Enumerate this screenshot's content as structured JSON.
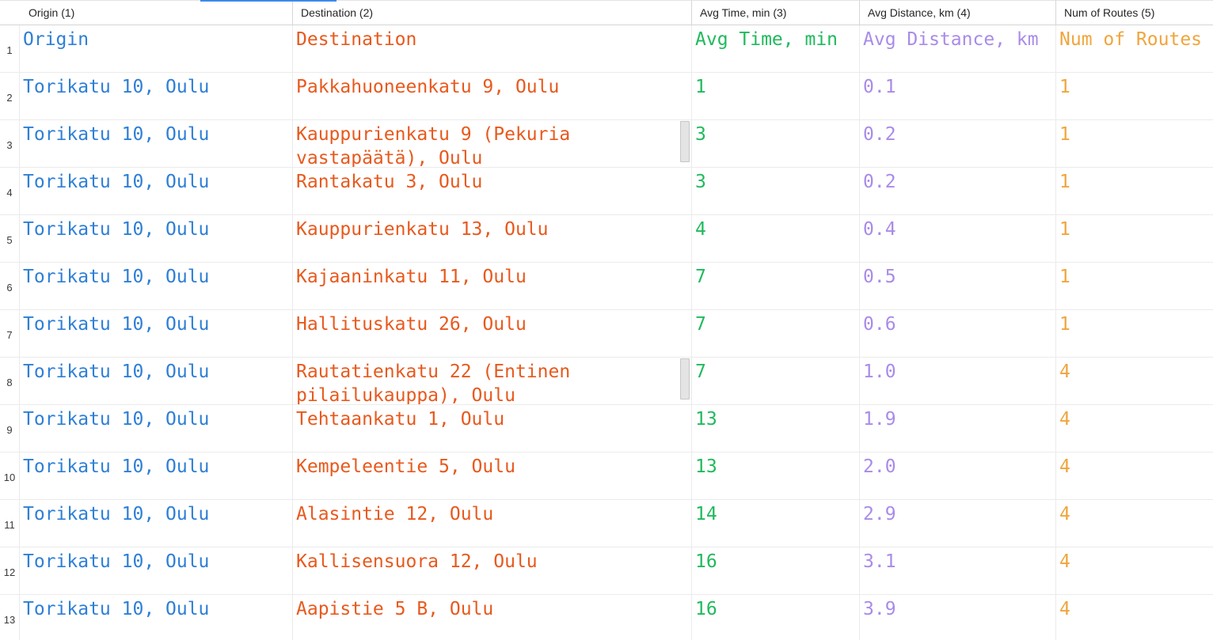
{
  "colors": {
    "origin": "#2e7fd6",
    "destination": "#e8591d",
    "avg_time": "#1fba5c",
    "avg_distance": "#a98be8",
    "num_routes": "#f0a53c"
  },
  "header": {
    "origin": "Origin (1)",
    "destination": "Destination (2)",
    "avg_time": "Avg Time, min (3)",
    "avg_distance": "Avg Distance, km (4)",
    "num_routes": "Num of Routes (5)"
  },
  "rows": [
    {
      "num": "1",
      "origin": "Origin",
      "destination": "Destination",
      "avg_time": "Avg Time, min",
      "avg_distance": "Avg Distance, km",
      "num_routes": "Num of Routes"
    },
    {
      "num": "2",
      "origin": "Torikatu 10, Oulu",
      "destination": "Pakkahuoneenkatu 9, Oulu",
      "avg_time": "1",
      "avg_distance": "0.1",
      "num_routes": "1"
    },
    {
      "num": "3",
      "origin": "Torikatu 10, Oulu",
      "destination": "Kauppurienkatu 9 (Pekuria vastapäätä), Oulu",
      "avg_time": "3",
      "avg_distance": "0.2",
      "num_routes": "1"
    },
    {
      "num": "4",
      "origin": "Torikatu 10, Oulu",
      "destination": "Rantakatu 3, Oulu",
      "avg_time": "3",
      "avg_distance": "0.2",
      "num_routes": "1"
    },
    {
      "num": "5",
      "origin": "Torikatu 10, Oulu",
      "destination": "Kauppurienkatu 13, Oulu",
      "avg_time": "4",
      "avg_distance": "0.4",
      "num_routes": "1"
    },
    {
      "num": "6",
      "origin": "Torikatu 10, Oulu",
      "destination": "Kajaaninkatu 11, Oulu",
      "avg_time": "7",
      "avg_distance": "0.5",
      "num_routes": "1"
    },
    {
      "num": "7",
      "origin": "Torikatu 10, Oulu",
      "destination": "Hallituskatu 26, Oulu",
      "avg_time": "7",
      "avg_distance": "0.6",
      "num_routes": "1"
    },
    {
      "num": "8",
      "origin": "Torikatu 10, Oulu",
      "destination": "Rautatienkatu 22 (Entinen pilailukauppa), Oulu",
      "avg_time": "7",
      "avg_distance": "1.0",
      "num_routes": "4"
    },
    {
      "num": "9",
      "origin": "Torikatu 10, Oulu",
      "destination": "Tehtaankatu 1, Oulu",
      "avg_time": "13",
      "avg_distance": "1.9",
      "num_routes": "4"
    },
    {
      "num": "10",
      "origin": "Torikatu 10, Oulu",
      "destination": "Kempeleentie 5, Oulu",
      "avg_time": "13",
      "avg_distance": "2.0",
      "num_routes": "4"
    },
    {
      "num": "11",
      "origin": "Torikatu 10, Oulu",
      "destination": "Alasintie 12, Oulu",
      "avg_time": "14",
      "avg_distance": "2.9",
      "num_routes": "4"
    },
    {
      "num": "12",
      "origin": "Torikatu 10, Oulu",
      "destination": "Kallisensuora 12, Oulu",
      "avg_time": "16",
      "avg_distance": "3.1",
      "num_routes": "4"
    },
    {
      "num": "13",
      "origin": "Torikatu 10, Oulu",
      "destination": "Aapistie 5 B, Oulu",
      "avg_time": "16",
      "avg_distance": "3.9",
      "num_routes": "4"
    }
  ]
}
